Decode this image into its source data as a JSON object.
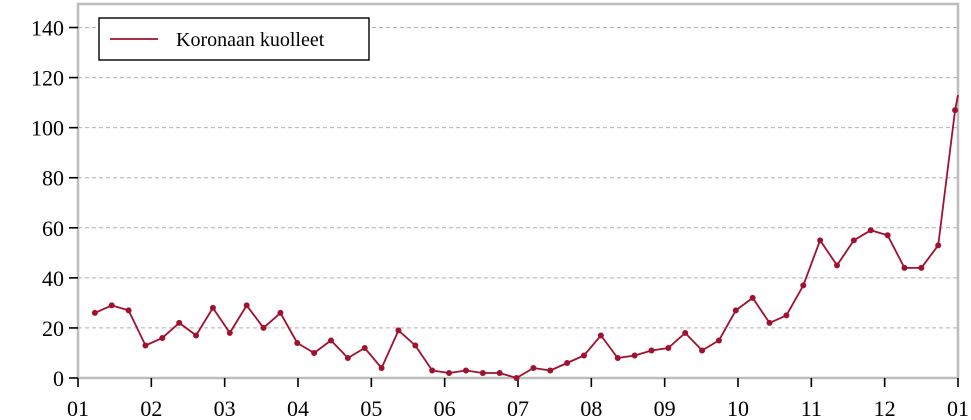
{
  "chart_data": {
    "type": "line",
    "title": "",
    "xlabel": "",
    "ylabel": "",
    "ylim": [
      0,
      150
    ],
    "xlim": [
      0,
      12
    ],
    "grid": {
      "y": true,
      "x": false,
      "style": "dashed"
    },
    "legend": {
      "position": "top-left",
      "entries": [
        "Koronaan kuolleet"
      ]
    },
    "x_tick_labels": [
      "01",
      "02",
      "03",
      "04",
      "05",
      "06",
      "07",
      "08",
      "09",
      "10",
      "11",
      "12",
      "01"
    ],
    "y_ticks": [
      0,
      20,
      40,
      60,
      80,
      100,
      120,
      140
    ],
    "series": [
      {
        "name": "Koronaan kuolleet",
        "color": "#a0112f",
        "x": [
          0.23,
          0.46,
          0.69,
          0.92,
          1.15,
          1.38,
          1.61,
          1.84,
          2.07,
          2.3,
          2.53,
          2.76,
          2.99,
          3.22,
          3.45,
          3.68,
          3.91,
          4.14,
          4.37,
          4.6,
          4.83,
          5.06,
          5.29,
          5.52,
          5.75,
          5.98,
          6.21,
          6.44,
          6.67,
          6.9,
          7.13,
          7.36,
          7.59,
          7.82,
          8.05,
          8.28,
          8.51,
          8.74,
          8.97,
          9.2,
          9.43,
          9.66,
          9.89,
          10.12,
          10.35,
          10.58,
          10.81,
          11.04,
          11.27,
          11.5,
          11.73,
          11.96,
          12.0
        ],
        "y": [
          26,
          29,
          27,
          13,
          16,
          22,
          17,
          28,
          18,
          29,
          20,
          26,
          14,
          10,
          15,
          8,
          12,
          4,
          19,
          13,
          3,
          2,
          3,
          2,
          2,
          0,
          4,
          3,
          6,
          9,
          17,
          8,
          9,
          11,
          12,
          18,
          11,
          15,
          27,
          32,
          22,
          25,
          37,
          55,
          45,
          55,
          59,
          57,
          44,
          44,
          53,
          107,
          113
        ],
        "markers": true
      }
    ]
  }
}
